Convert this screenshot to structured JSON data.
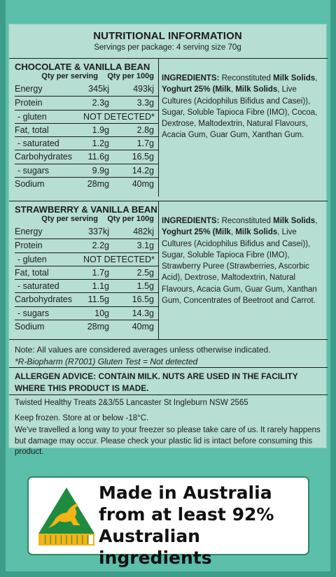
{
  "header": {
    "title": "NUTRITIONAL INFORMATION",
    "subtitle": "Servings per package: 4 serving size 70g"
  },
  "products": [
    {
      "name": "CHOCOLATE & VANILLA BEAN",
      "col_serving": "Qty per serving",
      "col_100g": "Qty per 100g",
      "rows": [
        {
          "label": "Energy",
          "serving": "345kj",
          "per100": "493kj"
        },
        {
          "label": "Protein",
          "serving": "2.3g",
          "per100": "3.3g"
        },
        {
          "label": "- gluten",
          "not_detected": "NOT DETECTED*"
        },
        {
          "label": "Fat, total",
          "serving": "1.9g",
          "per100": "2.8g"
        },
        {
          "label": "- saturated",
          "serving": "1.2g",
          "per100": "1.7g"
        },
        {
          "label": "Carbohydrates",
          "serving": "11.6g",
          "per100": "16.5g"
        },
        {
          "label": "- sugars",
          "serving": "9.9g",
          "per100": "14.2g"
        },
        {
          "label": "Sodium",
          "serving": "28mg",
          "per100": "40mg"
        }
      ],
      "ingredients_label": "INGREDIENTS:",
      "ingredients_segments": [
        {
          "t": " Reconstituted ",
          "b": false
        },
        {
          "t": "Milk Solids",
          "b": true
        },
        {
          "t": ", ",
          "b": false
        },
        {
          "t": "Yoghurt 25% (Milk",
          "b": true
        },
        {
          "t": ", ",
          "b": false
        },
        {
          "t": "Milk Solids",
          "b": true
        },
        {
          "t": ", Live Cultures (Acidophilus Bifidus and Casei)), Sugar, Soluble Tapioca Fibre (IMO), Cocoa, Dextrose, Maltodextrin, Natural Flavours, Acacia Gum, Guar Gum, Xanthan Gum.",
          "b": false
        }
      ]
    },
    {
      "name": "STRAWBERRY & VANILLA BEAN",
      "col_serving": "Qty per serving",
      "col_100g": "Qty per 100g",
      "rows": [
        {
          "label": "Energy",
          "serving": "337kj",
          "per100": "482kj"
        },
        {
          "label": "Protein",
          "serving": "2.2g",
          "per100": "3.1g"
        },
        {
          "label": "- gluten",
          "not_detected": "NOT DETECTED*"
        },
        {
          "label": "Fat, total",
          "serving": "1.7g",
          "per100": "2.5g"
        },
        {
          "label": "- saturated",
          "serving": "1.1g",
          "per100": "1.5g"
        },
        {
          "label": "Carbohydrates",
          "serving": "11.5g",
          "per100": "16.5g"
        },
        {
          "label": "- sugars",
          "serving": "10g",
          "per100": "14.3g"
        },
        {
          "label": "Sodium",
          "serving": "28mg",
          "per100": "40mg"
        }
      ],
      "ingredients_label": "INGREDIENTS:",
      "ingredients_segments": [
        {
          "t": " Reconstituted ",
          "b": false
        },
        {
          "t": "Milk Solids",
          "b": true
        },
        {
          "t": ", ",
          "b": false
        },
        {
          "t": "Yoghurt 25% (Milk",
          "b": true
        },
        {
          "t": ", ",
          "b": false
        },
        {
          "t": "Milk Solids",
          "b": true
        },
        {
          "t": ", Live Cultures (Acidophilus Bifidus and Casei)), Sugar, Soluble Tapioca Fibre (IMO), Strawberry Puree (Strawberries, Ascorbic Acid), Dextrose, Maltodextrin, Natural Flavours, Acacia Gum, Guar Gum, Xanthan Gum, Concentrates of Beetroot and Carrot.",
          "b": false
        }
      ]
    }
  ],
  "notes": {
    "note": "Note: All values are considered averages unless otherwise indicated.",
    "gluten_test": "*R-Biopharm (R7001) Gluten Test = Not detected"
  },
  "allergen": "ALLERGEN ADVICE: CONTAIN MILK. NUTS ARE USED IN THE FACILITY WHERE THIS PRODUCT IS MADE.",
  "company": {
    "address": "Twisted Healthy Treats 2&3/55 Lancaster St Ingleburn NSW 2565",
    "storage": "Keep frozen. Store at or below -18°C.",
    "care": "We've travelled a long way to your freezer so please take care of us. It rarely happens but damage may occur. Please check your plastic lid is intact before consuming this product."
  },
  "badge": {
    "line1": "Made in Australia",
    "line2": "from at least 92%",
    "line3": "Australian ingredients",
    "fill_fraction": 0.92,
    "green": "#1e8b3e",
    "gold": "#f5b316",
    "icon": "kangaroo-triangle-logo"
  },
  "colors": {
    "background": "#5bbfaa",
    "panel": "#b6ded2"
  }
}
